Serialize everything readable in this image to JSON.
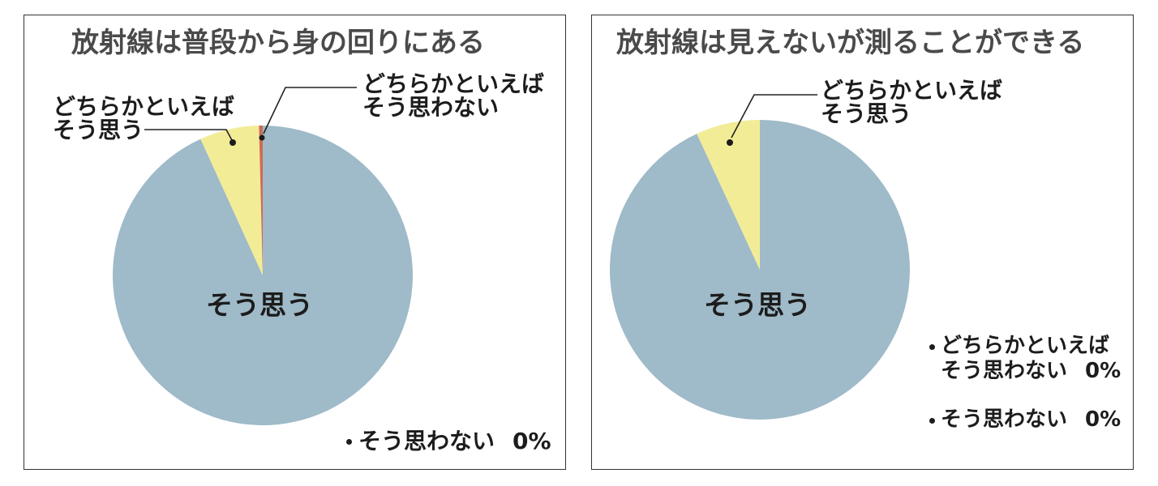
{
  "chart_data": [
    {
      "type": "pie",
      "title": "放射線は普段から身の回りにある",
      "categories": [
        "そう思う",
        "どちらかといえば\nそう思う",
        "どちらかといえば\nそう思わない",
        "そう思わない"
      ],
      "values": [
        93.2,
        6.4,
        0.4,
        0
      ],
      "value_labels": [
        null,
        null,
        null,
        "0%"
      ],
      "colors": [
        "#9fbac8",
        "#f3ec97",
        "#cf6c54"
      ]
    },
    {
      "type": "pie",
      "title": "放射線は見えないが測ることができる",
      "categories": [
        "そう思う",
        "どちらかといえば\nそう思う",
        "どちらかといえば\nそう思わない",
        "そう思わない"
      ],
      "values": [
        93.1,
        6.9,
        0,
        0
      ],
      "value_labels": [
        null,
        null,
        "0%",
        "0%"
      ],
      "colors": [
        "#9fbac8",
        "#f3ec97"
      ]
    }
  ]
}
